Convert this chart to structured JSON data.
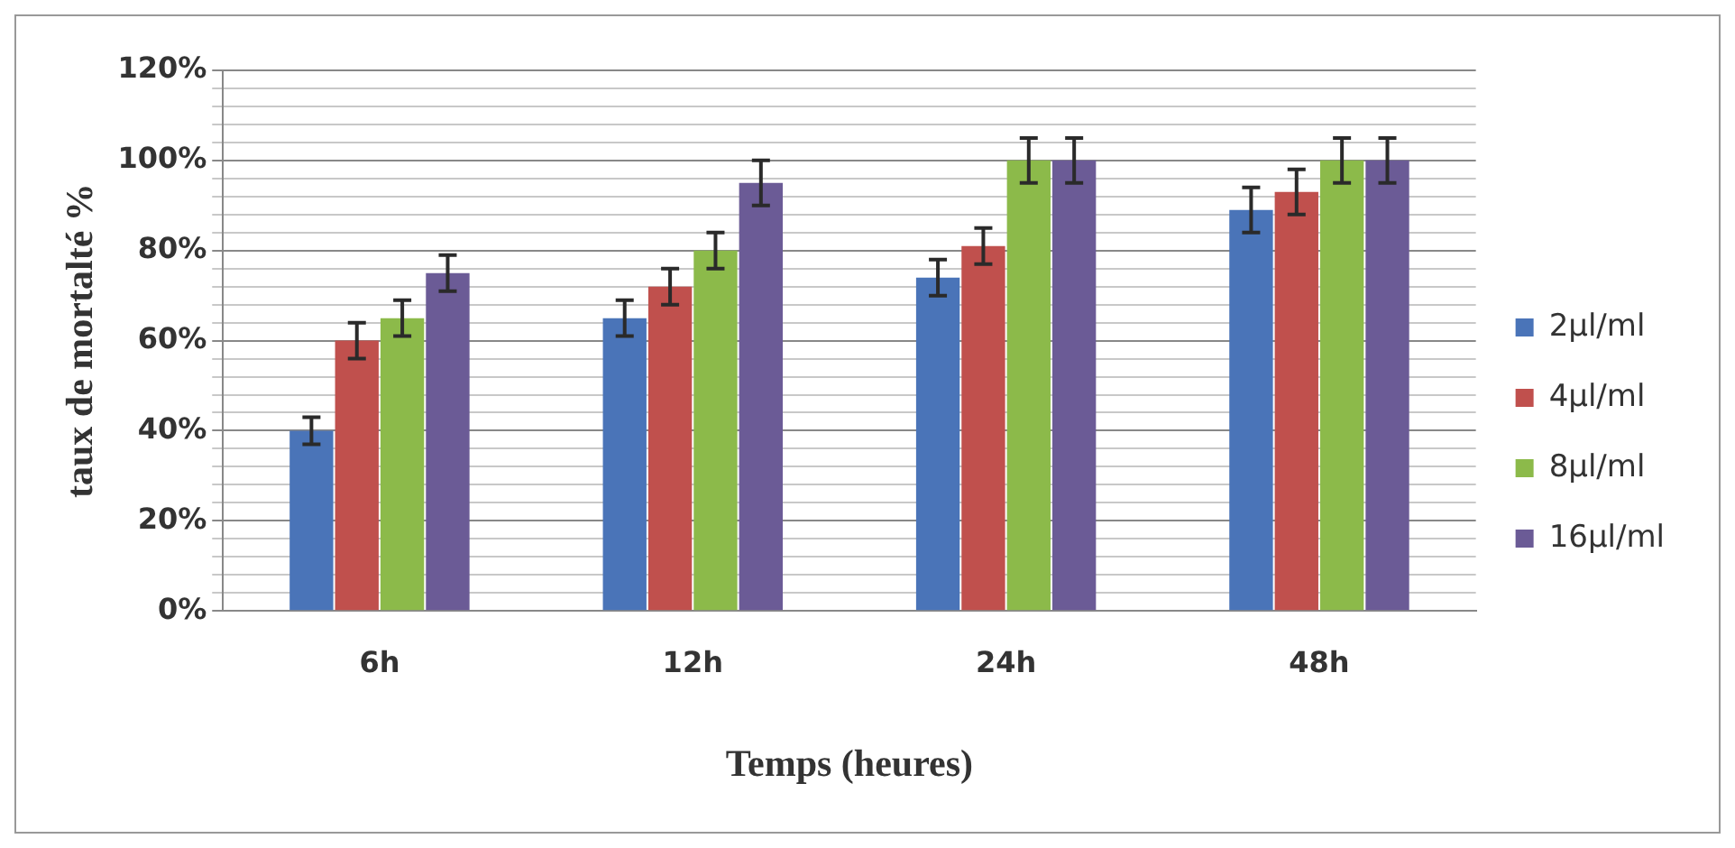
{
  "chart_data": {
    "type": "bar",
    "xlabel": "Temps (heures)",
    "ylabel": "taux de mortalté %",
    "categories": [
      "6h",
      "12h",
      "24h",
      "48h"
    ],
    "series": [
      {
        "name": "2µl/ml",
        "color": "#4a74b8",
        "values": [
          40,
          65,
          74,
          89
        ],
        "errors": [
          3,
          4,
          4,
          5
        ]
      },
      {
        "name": "4µl/ml",
        "color": "#c0504d",
        "values": [
          60,
          72,
          81,
          93
        ],
        "errors": [
          4,
          4,
          4,
          5
        ]
      },
      {
        "name": "8µl/ml",
        "color": "#8cba4a",
        "values": [
          65,
          80,
          100,
          100
        ],
        "errors": [
          4,
          4,
          5,
          5
        ]
      },
      {
        "name": "16µl/ml",
        "color": "#6b5b96",
        "values": [
          75,
          95,
          100,
          100
        ],
        "errors": [
          4,
          5,
          5,
          5
        ]
      }
    ],
    "ylim": [
      0,
      120
    ],
    "yticks": [
      {
        "value": 0,
        "label": "0%"
      },
      {
        "value": 4,
        "label": null
      },
      {
        "value": 8,
        "label": null
      },
      {
        "value": 12,
        "label": null
      },
      {
        "value": 16,
        "label": null
      },
      {
        "value": 20,
        "label": "20%"
      },
      {
        "value": 24,
        "label": null
      },
      {
        "value": 28,
        "label": null
      },
      {
        "value": 32,
        "label": null
      },
      {
        "value": 36,
        "label": null
      },
      {
        "value": 40,
        "label": "40%"
      },
      {
        "value": 44,
        "label": null
      },
      {
        "value": 48,
        "label": null
      },
      {
        "value": 52,
        "label": null
      },
      {
        "value": 56,
        "label": null
      },
      {
        "value": 60,
        "label": "60%"
      },
      {
        "value": 64,
        "label": null
      },
      {
        "value": 68,
        "label": null
      },
      {
        "value": 72,
        "label": null
      },
      {
        "value": 76,
        "label": null
      },
      {
        "value": 80,
        "label": "80%"
      },
      {
        "value": 84,
        "label": null
      },
      {
        "value": 88,
        "label": null
      },
      {
        "value": 92,
        "label": null
      },
      {
        "value": 96,
        "label": null
      },
      {
        "value": 100,
        "label": "100%"
      },
      {
        "value": 104,
        "label": null
      },
      {
        "value": 108,
        "label": null
      },
      {
        "value": 112,
        "label": null
      },
      {
        "value": 116,
        "label": null
      },
      {
        "value": 120,
        "label": "120%"
      }
    ],
    "grid": "y",
    "legend": "right"
  }
}
